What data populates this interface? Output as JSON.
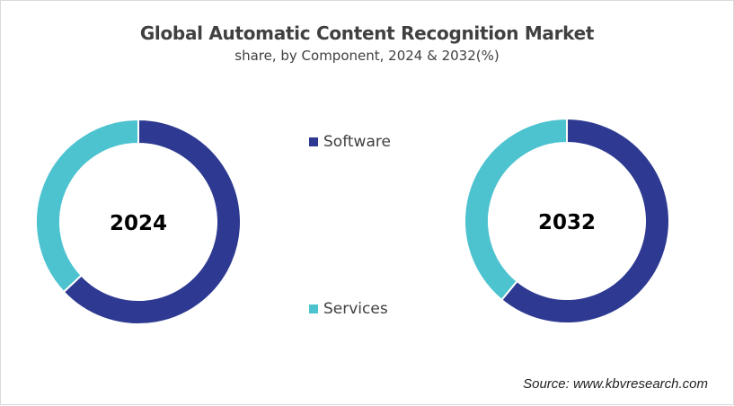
{
  "chart_data": [
    {
      "type": "pie",
      "donut": true,
      "title": "Global Automatic Content Recognition Market",
      "subtitle": "share, by Component, 2024 & 2032(%)",
      "center_label": "2024",
      "categories": [
        "Software",
        "Services"
      ],
      "values": [
        63,
        37
      ],
      "colors": [
        "#2e3a91",
        "#4dc3d0"
      ]
    },
    {
      "type": "pie",
      "donut": true,
      "center_label": "2032",
      "categories": [
        "Software",
        "Services"
      ],
      "values": [
        61,
        39
      ],
      "colors": [
        "#2e3a91",
        "#4dc3d0"
      ]
    }
  ],
  "title": "Global Automatic Content Recognition Market",
  "subtitle": "share, by Component, 2024 & 2032(%)",
  "legend": [
    {
      "label": "Software",
      "color": "#2e3a91"
    },
    {
      "label": "Services",
      "color": "#4dc3d0"
    }
  ],
  "source": "Source: www.kbvresearch.com"
}
